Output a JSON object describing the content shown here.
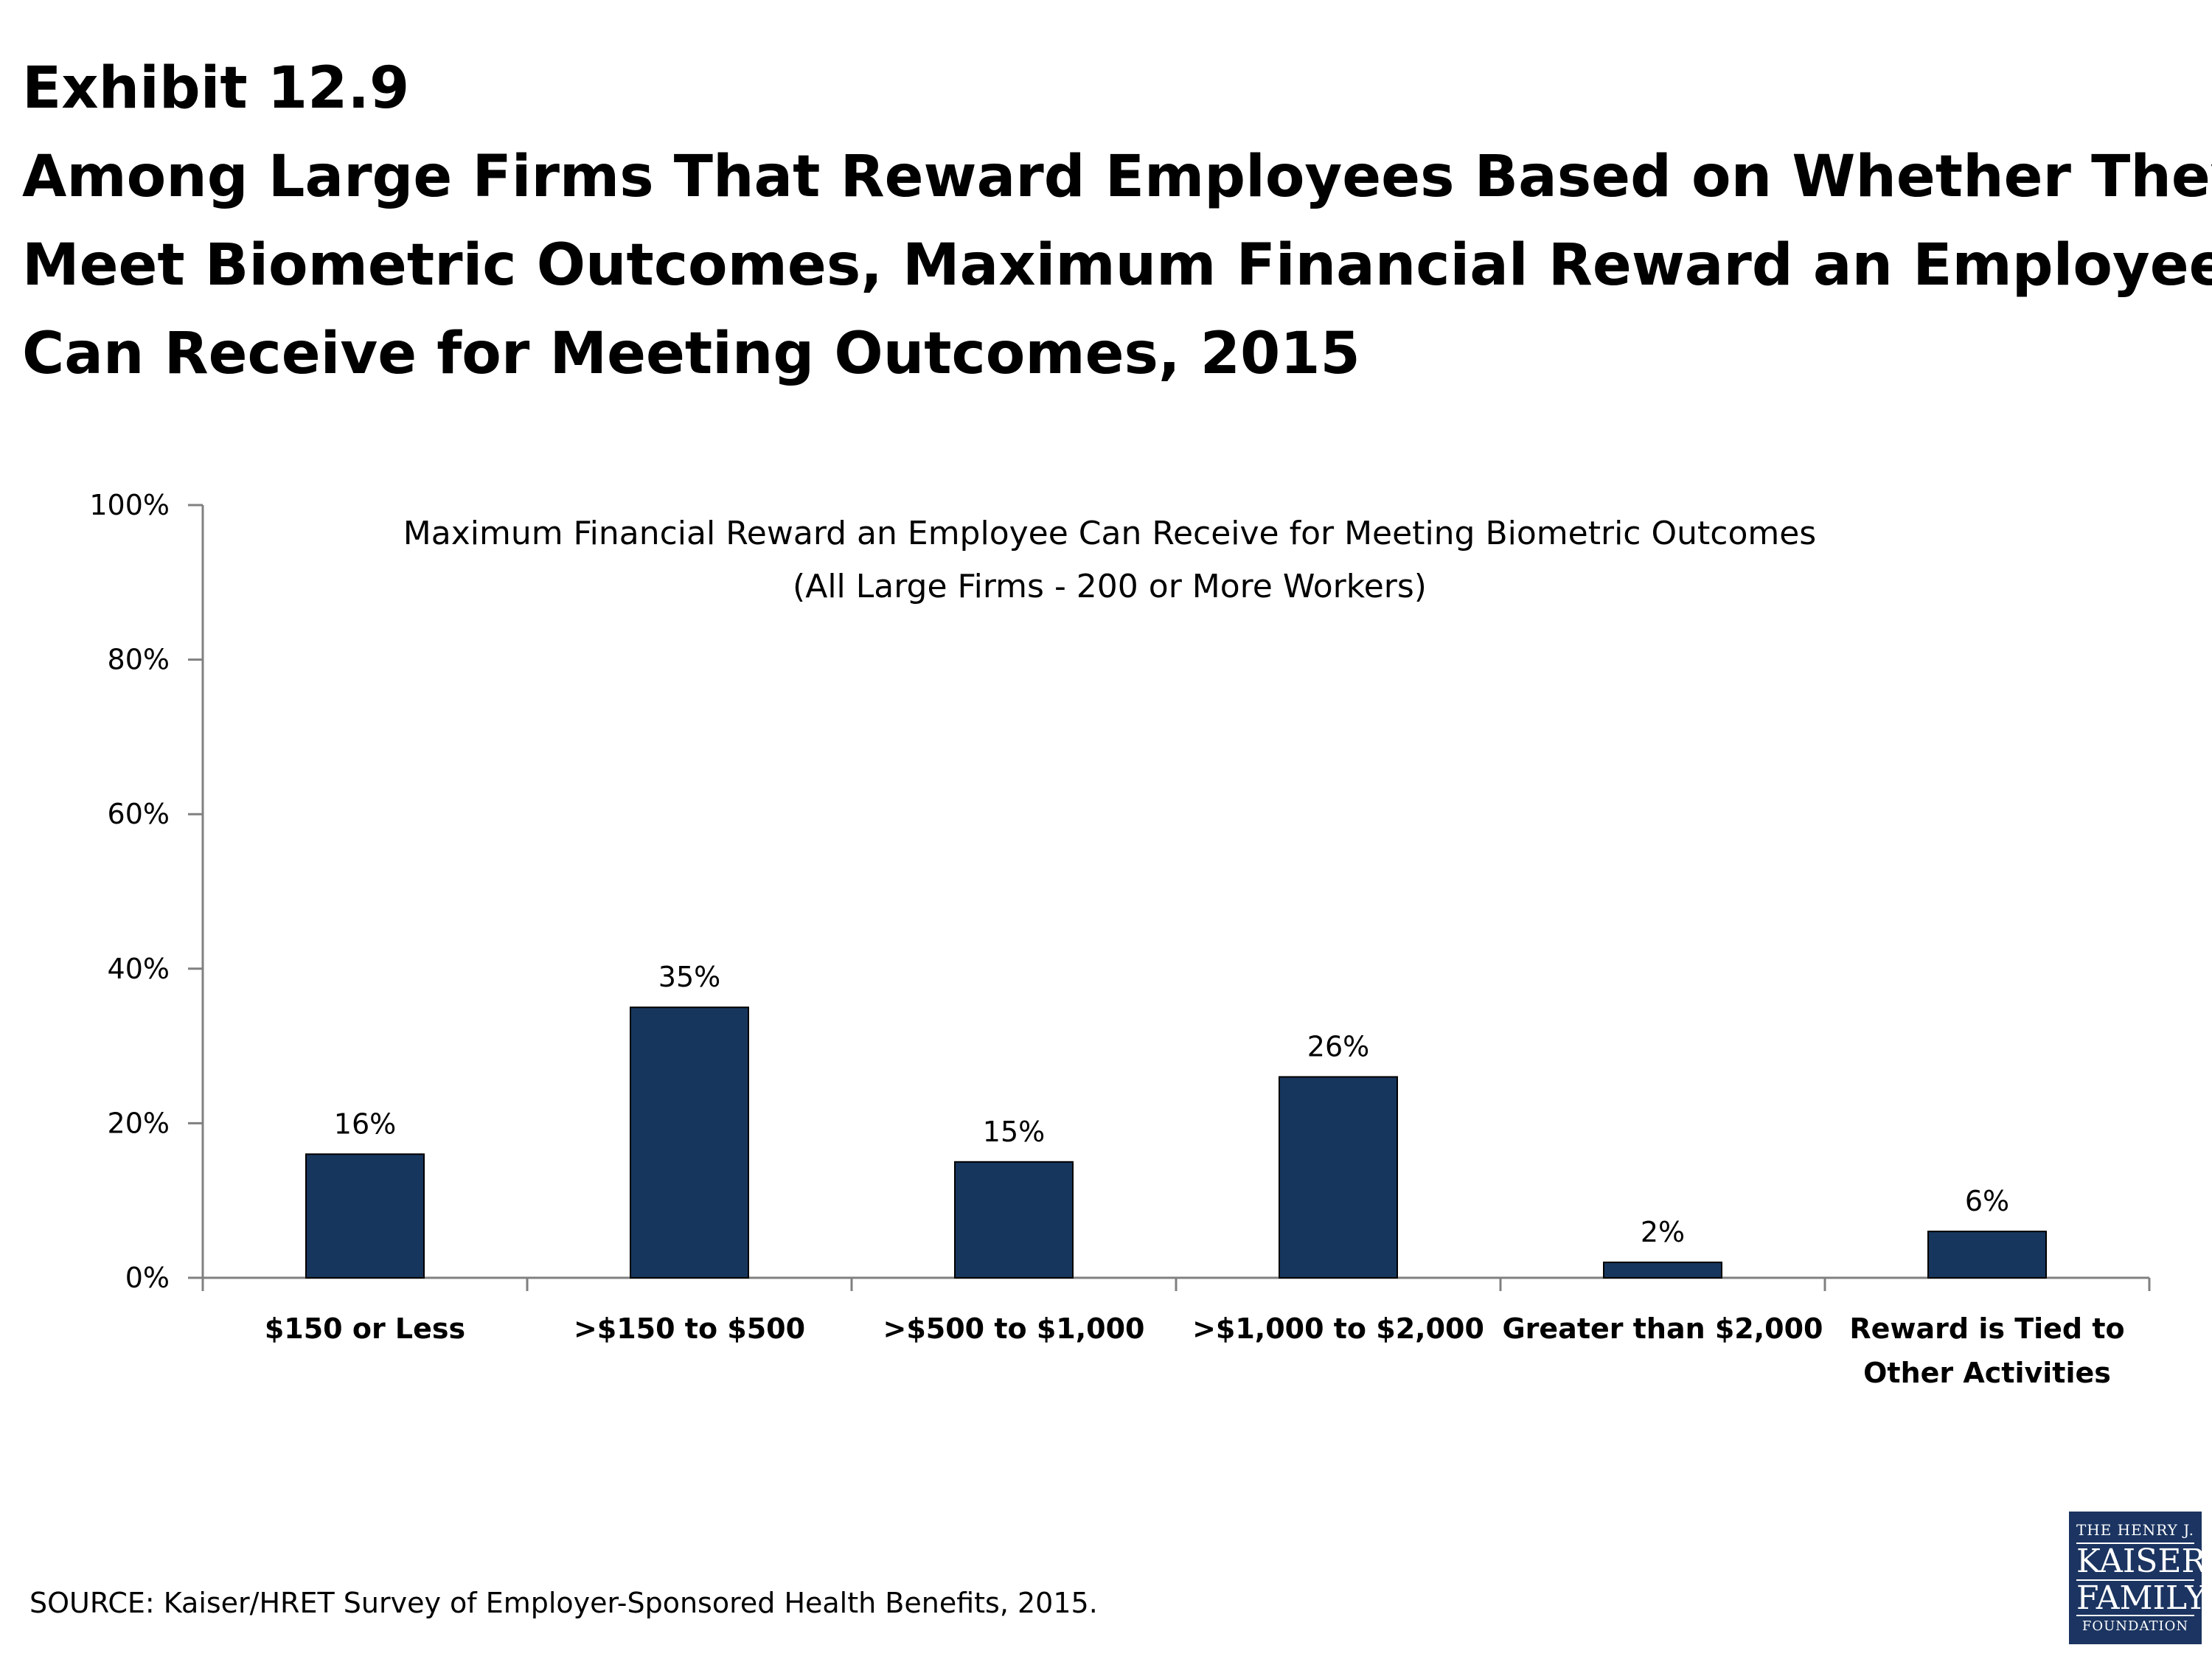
{
  "exhibit": {
    "title_lines": [
      "Exhibit 12.9",
      "Among Large Firms That Reward Employees Based on Whether They",
      "Meet Biometric Outcomes, Maximum Financial Reward an Employee",
      "Can Receive for Meeting Outcomes, 2015"
    ]
  },
  "chart_data": {
    "type": "bar",
    "title_lines": [
      "Maximum Financial Reward an Employee Can Receive for Meeting Biometric Outcomes",
      "(All Large Firms - 200 or More Workers)"
    ],
    "categories": [
      [
        "$150 or Less"
      ],
      [
        ">$150 to $500"
      ],
      [
        ">$500 to $1,000"
      ],
      [
        ">$1,000 to $2,000"
      ],
      [
        "Greater than $2,000"
      ],
      [
        "Reward is Tied to",
        "Other Activities"
      ]
    ],
    "values": [
      16,
      35,
      15,
      26,
      2,
      6
    ],
    "data_labels": [
      "16%",
      "35%",
      "15%",
      "26%",
      "2%",
      "6%"
    ],
    "ylim": [
      0,
      100
    ],
    "y_ticks": [
      0,
      20,
      40,
      60,
      80,
      100
    ],
    "y_tick_labels": [
      "0%",
      "20%",
      "40%",
      "60%",
      "80%",
      "100%"
    ],
    "xlabel": "",
    "ylabel": "",
    "grid": false,
    "bar_color": "#17365d"
  },
  "source": "SOURCE: Kaiser/HRET Survey of Employer-Sponsored Health Benefits, 2015.",
  "logo": {
    "line1": "THE HENRY J.",
    "line2": "KAISER",
    "line3": "FAMILY",
    "line4": "FOUNDATION",
    "color": "#1b3461"
  }
}
